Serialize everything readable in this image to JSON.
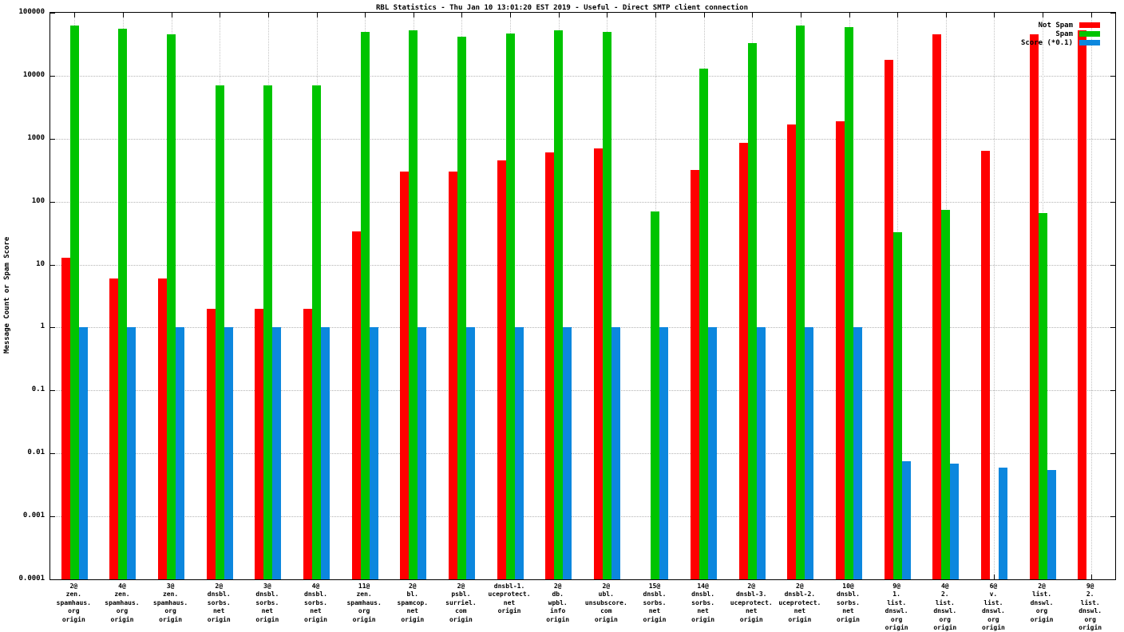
{
  "chart_data": {
    "type": "bar",
    "title": "RBL Statistics - Thu Jan 10 13:01:20 EST 2019 - Useful - Direct SMTP client connection",
    "ylabel": "Message Count or Spam Score",
    "xlabel": "",
    "y_scale": "log10",
    "ylim": [
      0.0001,
      100000
    ],
    "yticks": [
      "100000",
      "10000",
      "1000",
      "100",
      "10",
      "1",
      "0.1",
      "0.01",
      "0.001",
      "0.0001"
    ],
    "grid": true,
    "legend_position": "top-right-inside",
    "categories": [
      "2@\nzen.\nspamhaus.\norg\norigin",
      "4@\nzen.\nspamhaus.\norg\norigin",
      "3@\nzen.\nspamhaus.\norg\norigin",
      "2@\ndnsbl.\nsorbs.\nnet\norigin",
      "3@\ndnsbl.\nsorbs.\nnet\norigin",
      "4@\ndnsbl.\nsorbs.\nnet\norigin",
      "11@\nzen.\nspamhaus.\norg\norigin",
      "2@\nbl.\nspamcop.\nnet\norigin",
      "2@\npsbl.\nsurriel.\ncom\norigin",
      "dnsbl-1.\nuceprotect.\nnet\norigin",
      "2@\ndb.\nwpbl.\ninfo\norigin",
      "2@\nubl.\nunsubscore.\ncom\norigin",
      "15@\ndnsbl.\nsorbs.\nnet\norigin",
      "14@\ndnsbl.\nsorbs.\nnet\norigin",
      "2@\ndnsbl-3.\nuceprotect.\nnet\norigin",
      "2@\ndnsbl-2.\nuceprotect.\nnet\norigin",
      "10@\ndnsbl.\nsorbs.\nnet\norigin",
      "9@\n1.\nlist.\ndnswl.\norg\norigin",
      "4@\n2.\nlist.\ndnswl.\norg\norigin",
      "6@\nv.\nlist.\ndnswl.\norg\norigin",
      "2@\nlist.\ndnswl.\norg\norigin",
      "9@\n2.\nlist.\ndnswl.\norg\norigin"
    ],
    "series": [
      {
        "name": "Not Spam",
        "color": "#ff0000",
        "values": [
          13,
          6,
          6,
          2,
          2,
          2,
          34,
          300,
          300,
          450,
          600,
          700,
          0,
          320,
          850,
          1700,
          1900,
          18000,
          45000,
          650,
          45000,
          52000
        ]
      },
      {
        "name": "Spam",
        "color": "#00c400",
        "values": [
          62000,
          55000,
          46000,
          7000,
          7000,
          7000,
          50000,
          52000,
          42000,
          47000,
          52000,
          50000,
          70,
          13000,
          33000,
          62000,
          60000,
          33,
          75,
          0,
          65,
          0
        ]
      },
      {
        "name": "Score (*0.1)",
        "color": "#0c87de",
        "values": [
          1,
          1,
          1,
          1,
          1,
          1,
          1,
          1,
          1,
          1,
          1,
          1,
          1,
          1,
          1,
          1,
          1,
          0.0075,
          0.0068,
          0.006,
          0.0055,
          0
        ]
      }
    ]
  }
}
